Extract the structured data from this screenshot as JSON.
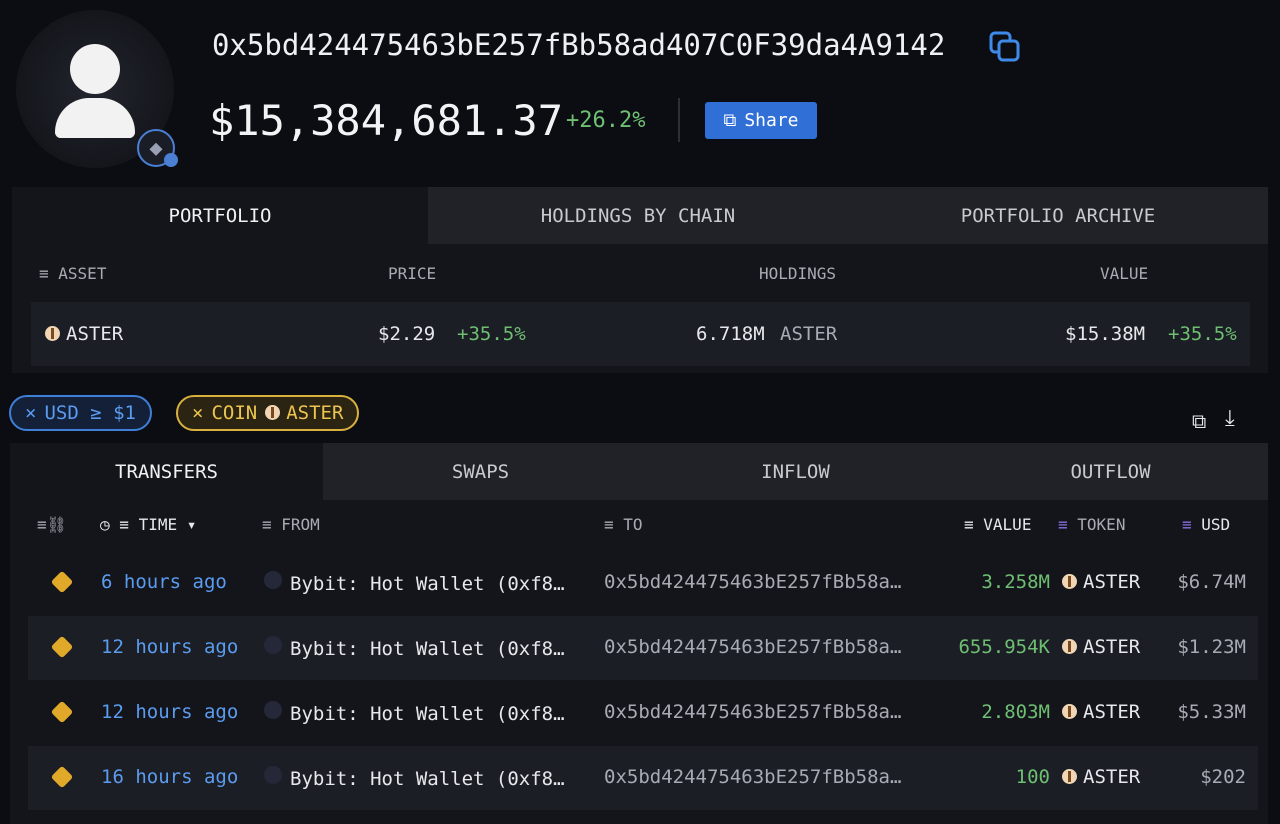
{
  "profile": {
    "address": "0x5bd424475463bE257fBb58ad407C0F39da4A9142",
    "total_value": "$15,384,681.37",
    "change": "+26.2%",
    "share_label": "Share",
    "chain_icon": "ethereum-icon"
  },
  "portfolio": {
    "tabs": [
      "PORTFOLIO",
      "HOLDINGS BY CHAIN",
      "PORTFOLIO ARCHIVE"
    ],
    "active_tab": "PORTFOLIO",
    "headers": {
      "asset": "ASSET",
      "price": "PRICE",
      "holdings": "HOLDINGS",
      "value": "VALUE"
    },
    "rows": [
      {
        "asset": "ASTER",
        "price": "$2.29",
        "price_change": "+35.5%",
        "holdings": "6.718M",
        "holdings_unit": "ASTER",
        "value": "$15.38M",
        "value_change": "+35.5%"
      }
    ]
  },
  "filters": [
    {
      "label": "USD ≥ $1",
      "color": "#3f7fd8"
    },
    {
      "label": "COIN",
      "token": "ASTER",
      "color": "#e6c04a"
    }
  ],
  "transfers": {
    "tabs": [
      "TRANSFERS",
      "SWAPS",
      "INFLOW",
      "OUTFLOW"
    ],
    "active_tab": "TRANSFERS",
    "headers": {
      "time": "TIME",
      "from": "FROM",
      "to": "TO",
      "value": "VALUE",
      "token": "TOKEN",
      "usd": "USD"
    },
    "rows": [
      {
        "time": "6 hours ago",
        "from": "Bybit: Hot Wallet (0xf8…",
        "to": "0x5bd424475463bE257fBb58a…",
        "value": "3.258M",
        "token": "ASTER",
        "usd": "$6.74M"
      },
      {
        "time": "12 hours ago",
        "from": "Bybit: Hot Wallet (0xf8…",
        "to": "0x5bd424475463bE257fBb58a…",
        "value": "655.954K",
        "token": "ASTER",
        "usd": "$1.23M"
      },
      {
        "time": "12 hours ago",
        "from": "Bybit: Hot Wallet (0xf8…",
        "to": "0x5bd424475463bE257fBb58a…",
        "value": "2.803M",
        "token": "ASTER",
        "usd": "$5.33M"
      },
      {
        "time": "16 hours ago",
        "from": "Bybit: Hot Wallet (0xf8…",
        "to": "0x5bd424475463bE257fBb58a…",
        "value": "100",
        "token": "ASTER",
        "usd": "$202"
      }
    ]
  }
}
